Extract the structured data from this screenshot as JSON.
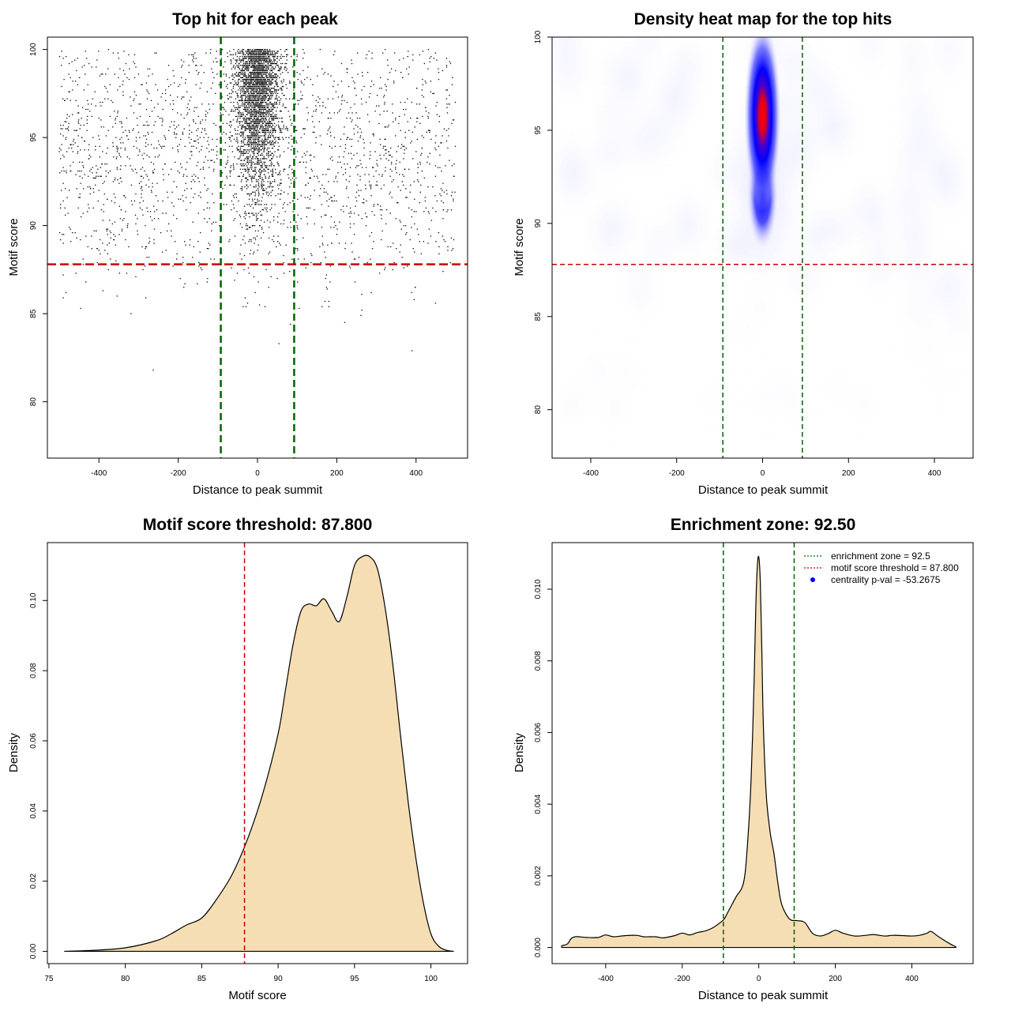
{
  "chart_data": [
    {
      "type": "scatter",
      "title": "Top hit for each peak",
      "xlabel": "Distance to peak summit",
      "ylabel": "Motif score",
      "xlim": [
        -530,
        530
      ],
      "ylim": [
        76.8,
        100.7
      ],
      "xticks": [
        -400,
        -200,
        0,
        200,
        400
      ],
      "xtick_labels": [
        "-400",
        "-200",
        "0",
        "200",
        "400"
      ],
      "yticks": [
        80,
        85,
        90,
        95,
        100
      ],
      "ytick_labels": [
        "80",
        "85",
        "90",
        "95",
        "100"
      ],
      "vlines": [
        -92.5,
        92.5
      ],
      "hline": 87.8,
      "vline_color": "#006400",
      "hline_color": "#cc0000",
      "point_color": "#000000",
      "point_model": {
        "total_points": 5200,
        "central_fraction": 0.6,
        "central_sd": 28,
        "x_range": [
          -500,
          500
        ],
        "score_mean": 94,
        "score_sd": 3.6,
        "score_max": 100
      }
    },
    {
      "type": "heatmap",
      "title": "Density heat map for the top hits",
      "xlabel": "Distance to peak summit",
      "ylabel": "Motif score",
      "xlim": [
        -490,
        490
      ],
      "ylim": [
        77.4,
        100.0
      ],
      "xticks": [
        -400,
        -200,
        0,
        200,
        400
      ],
      "xtick_labels": [
        "-400",
        "-200",
        "0",
        "200",
        "400"
      ],
      "yticks": [
        80,
        85,
        90,
        95,
        100
      ],
      "ytick_labels": [
        "80",
        "85",
        "90",
        "95",
        "100"
      ],
      "vlines": [
        -92.5,
        92.5
      ],
      "hline": 87.8,
      "colors": [
        "#ffffff",
        "#0000ff",
        "#ff0000"
      ],
      "hotspot": {
        "x": 0,
        "y_peak": 96.8,
        "y_low": 88.5,
        "width_sd": 14
      }
    },
    {
      "type": "area",
      "title": "Motif score threshold: 87.800",
      "xlabel": "Motif score",
      "ylabel": "Density",
      "xlim": [
        74.9,
        102.4
      ],
      "ylim": [
        -0.0035,
        0.1165
      ],
      "xticks": [
        75,
        80,
        85,
        90,
        95,
        100
      ],
      "xtick_labels": [
        "75",
        "80",
        "85",
        "90",
        "95",
        "100"
      ],
      "yticks": [
        0.0,
        0.02,
        0.04,
        0.06,
        0.08,
        0.1
      ],
      "ytick_labels": [
        "0.00",
        "0.02",
        "0.04",
        "0.06",
        "0.08",
        "0.10"
      ],
      "fill_color": "#f5deb3",
      "vline": 87.8,
      "vline_color": "#cc0000",
      "x": [
        76,
        78,
        80,
        82,
        83,
        84,
        85,
        86,
        87,
        88,
        89,
        90,
        90.5,
        91,
        91.5,
        92,
        92.5,
        93,
        93.5,
        94,
        94.5,
        95,
        95.5,
        96,
        96.5,
        97,
        97.5,
        98,
        98.5,
        99,
        99.5,
        100,
        100.5,
        101,
        101.5
      ],
      "y": [
        0,
        0.0003,
        0.001,
        0.003,
        0.005,
        0.0075,
        0.0095,
        0.015,
        0.022,
        0.032,
        0.045,
        0.062,
        0.075,
        0.088,
        0.097,
        0.099,
        0.0985,
        0.1005,
        0.097,
        0.094,
        0.101,
        0.11,
        0.1125,
        0.1125,
        0.109,
        0.098,
        0.082,
        0.062,
        0.043,
        0.027,
        0.014,
        0.005,
        0.0015,
        0.0003,
        0
      ]
    },
    {
      "type": "area",
      "title": "Enrichment zone: 92.50",
      "xlabel": "Distance to peak summit",
      "ylabel": "Density",
      "xlim": [
        -540,
        560
      ],
      "ylim": [
        -0.00045,
        0.0113
      ],
      "xticks": [
        -400,
        -200,
        0,
        200,
        400
      ],
      "xtick_labels": [
        "-400",
        "-200",
        "0",
        "200",
        "400"
      ],
      "yticks": [
        0.0,
        0.002,
        0.004,
        0.006,
        0.008,
        0.01
      ],
      "ytick_labels": [
        "0.000",
        "0.002",
        "0.004",
        "0.006",
        "0.008",
        "0.010"
      ],
      "fill_color": "#f5deb3",
      "vlines": [
        -92.5,
        92.5
      ],
      "vline_color": "#006400",
      "x": [
        -515,
        -500,
        -490,
        -480,
        -470,
        -450,
        -420,
        -400,
        -380,
        -350,
        -320,
        -300,
        -270,
        -250,
        -220,
        -200,
        -180,
        -160,
        -140,
        -120,
        -100,
        -90,
        -80,
        -60,
        -40,
        -30,
        -20,
        -12,
        -8,
        -4,
        0,
        4,
        8,
        12,
        20,
        30,
        40,
        50,
        60,
        80,
        100,
        120,
        140,
        160,
        180,
        200,
        220,
        250,
        280,
        300,
        330,
        350,
        380,
        400,
        420,
        440,
        450,
        470,
        500,
        515
      ],
      "y": [
        5e-05,
        0.0001,
        0.00025,
        0.0003,
        0.0003,
        0.00028,
        0.00028,
        0.00035,
        0.0003,
        0.00033,
        0.00034,
        0.0003,
        0.0003,
        0.00027,
        0.00033,
        0.0004,
        0.00035,
        0.00042,
        0.00046,
        0.00055,
        0.0007,
        0.0008,
        0.001,
        0.0014,
        0.0018,
        0.0028,
        0.0047,
        0.0075,
        0.0094,
        0.0106,
        0.0109,
        0.0102,
        0.0083,
        0.0062,
        0.0042,
        0.0032,
        0.0026,
        0.0018,
        0.0012,
        0.0008,
        0.00075,
        0.0007,
        0.0004,
        0.00032,
        0.00038,
        0.00048,
        0.0004,
        0.00032,
        0.00034,
        0.00036,
        0.00032,
        0.00034,
        0.00033,
        0.00032,
        0.00034,
        0.0004,
        0.00045,
        0.0003,
        0.0001,
        2e-05
      ],
      "legend": {
        "position": "top-right",
        "entries": [
          {
            "label": "enrichment zone = 92.5",
            "color": "#006400",
            "style": "dotted-line"
          },
          {
            "label": "motif score threshold = 87.800",
            "color": "#cc0000",
            "style": "dotted-line"
          },
          {
            "label": "centrality p-val = -53.2675",
            "color": "#0000ff",
            "style": "point"
          }
        ]
      }
    }
  ]
}
